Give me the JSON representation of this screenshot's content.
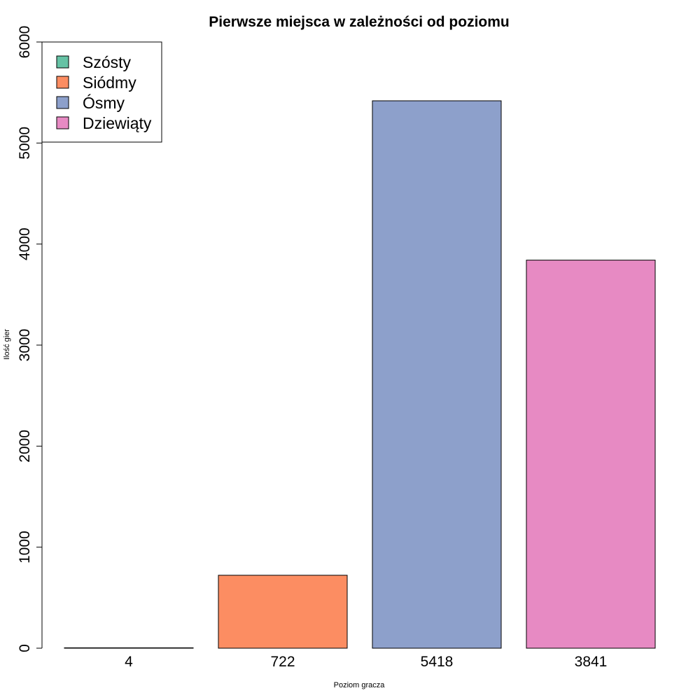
{
  "chart_data": {
    "type": "bar",
    "title": "Pierwsze miejsca w zależności od poziomu",
    "xlabel": "Poziom gracza",
    "ylabel": "Ilość gier",
    "categories": [
      "4",
      "722",
      "5418",
      "3841"
    ],
    "values": [
      4,
      722,
      5418,
      3841
    ],
    "colors": [
      "#66c2a5",
      "#fc8d62",
      "#8da0cb",
      "#e78ac3"
    ],
    "ylim": [
      0,
      6000
    ],
    "yticks": [
      0,
      1000,
      2000,
      3000,
      4000,
      5000,
      6000
    ],
    "grid": false,
    "legend": {
      "placement": "top-left",
      "entries": [
        {
          "label": "Szósty",
          "color": "#66c2a5"
        },
        {
          "label": "Siódmy",
          "color": "#fc8d62"
        },
        {
          "label": "Ósmy",
          "color": "#8da0cb"
        },
        {
          "label": "Dziewiąty",
          "color": "#e78ac3"
        }
      ]
    }
  }
}
